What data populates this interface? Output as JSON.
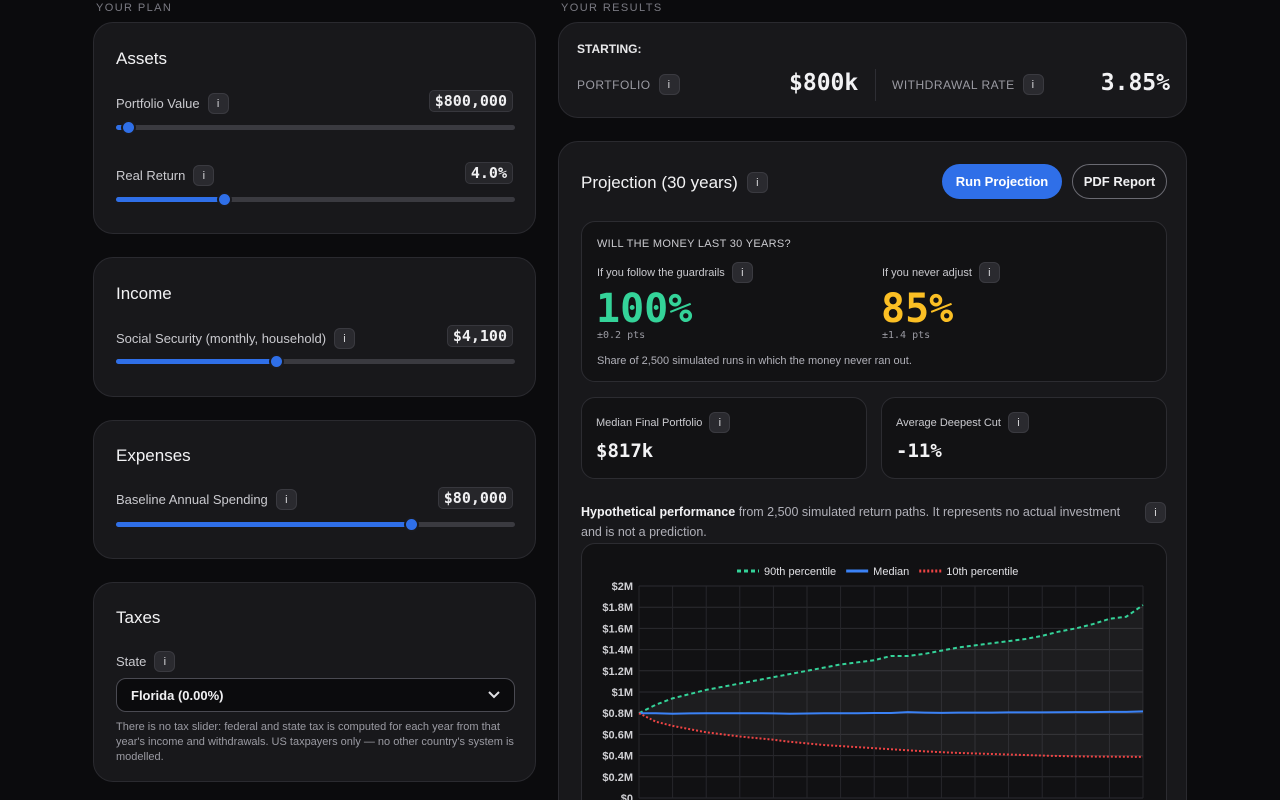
{
  "labels": {
    "your_plan": "YOUR PLAN",
    "your_results": "YOUR RESULTS"
  },
  "assets": {
    "title": "Assets",
    "portfolio": {
      "label": "Portfolio Value",
      "value": "$800,000",
      "level": 0.03
    },
    "real_return": {
      "label": "Real Return",
      "value": "4.0%",
      "level": 0.27
    }
  },
  "income": {
    "title": "Income",
    "social_security": {
      "label": "Social Security (monthly, household)",
      "value": "$4,100",
      "level": 0.4
    }
  },
  "expenses": {
    "title": "Expenses",
    "spending": {
      "label": "Baseline Annual Spending",
      "value": "$80,000",
      "level": 0.74
    }
  },
  "taxes": {
    "title": "Taxes",
    "state_label": "State",
    "state_value": "Florida (0.00%)",
    "note": "There is no tax slider: federal and state tax is computed for each year from that year's income and withdrawals. US taxpayers only — no other country's system is modelled."
  },
  "starting": {
    "title": "STARTING:",
    "portfolio_label": "PORTFOLIO",
    "portfolio_value": "$800k",
    "withdrawal_label": "WITHDRAWAL RATE",
    "withdrawal_value": "3.85%"
  },
  "projection": {
    "title": "Projection (30 years)",
    "run_button": "Run Projection",
    "pdf_button": "PDF Report",
    "question": "WILL THE MONEY LAST 30 YEARS?",
    "guardrails_label": "If you follow the guardrails",
    "guardrails_value": "100%",
    "guardrails_error": "±0.2 pts",
    "never_label": "If you never adjust",
    "never_value": "85%",
    "never_error": "±1.4 pts",
    "share_note": "Share of 2,500 simulated runs in which the money never ran out.",
    "median_label": "Median Final Portfolio",
    "median_value": "$817k",
    "cut_label": "Average Deepest Cut",
    "cut_value": "-11%",
    "hypo_bold": "Hypothetical performance",
    "hypo_text": " from 2,500 simulated return paths. It represents no actual investment and is not a prediction."
  },
  "colors": {
    "accent": "#2f6fe8",
    "green": "#34d399",
    "amber": "#fbbf24",
    "red": "#ef4444"
  },
  "chart_data": {
    "type": "line",
    "legend_placement": "top",
    "grid": true,
    "ylim": [
      0,
      2000000
    ],
    "ytick_labels": [
      "$0",
      "$0.2M",
      "$0.4M",
      "$0.6M",
      "$0.8M",
      "$1M",
      "$1.2M",
      "$1.4M",
      "$1.6M",
      "$1.8M",
      "$2M"
    ],
    "x": [
      0,
      1,
      2,
      3,
      4,
      5,
      6,
      7,
      8,
      9,
      10,
      11,
      12,
      13,
      14,
      15,
      16,
      17,
      18,
      19,
      20,
      21,
      22,
      23,
      24,
      25,
      26,
      27,
      28,
      29,
      30
    ],
    "series": [
      {
        "name": "90th percentile",
        "color": "#34d399",
        "dash": "4,3",
        "values": [
          800000,
          880000,
          940000,
          980000,
          1020000,
          1050000,
          1080000,
          1110000,
          1140000,
          1170000,
          1200000,
          1230000,
          1260000,
          1280000,
          1300000,
          1340000,
          1340000,
          1360000,
          1390000,
          1420000,
          1440000,
          1460000,
          1480000,
          1500000,
          1530000,
          1570000,
          1600000,
          1640000,
          1690000,
          1710000,
          1820000
        ]
      },
      {
        "name": "Median",
        "color": "#3b82f6",
        "dash": "",
        "values": [
          800000,
          800000,
          795000,
          798000,
          800000,
          800000,
          800000,
          800000,
          798000,
          795000,
          797000,
          800000,
          800000,
          800000,
          802000,
          802000,
          810000,
          805000,
          803000,
          805000,
          806000,
          806000,
          808000,
          808000,
          808000,
          809000,
          810000,
          810000,
          812000,
          812000,
          817000
        ]
      },
      {
        "name": "10th percentile",
        "color": "#ef4444",
        "dash": "2,2",
        "values": [
          800000,
          720000,
          680000,
          650000,
          620000,
          600000,
          580000,
          565000,
          550000,
          530000,
          515000,
          500000,
          490000,
          480000,
          470000,
          460000,
          450000,
          440000,
          432000,
          425000,
          420000,
          415000,
          410000,
          405000,
          400000,
          396000,
          393000,
          391000,
          390000,
          389000,
          388000
        ]
      }
    ]
  }
}
